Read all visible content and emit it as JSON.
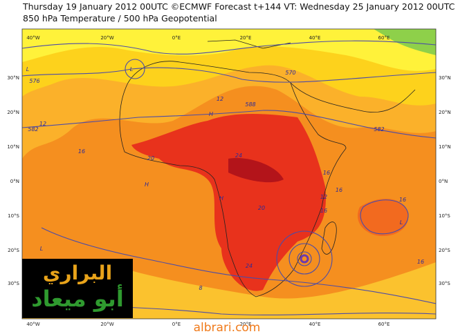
{
  "header": {
    "line1": "Thursday 19 January 2012 00UTC ©ECMWF Forecast t+144 VT: Wednesday 25 January 2012 00UTC",
    "line2": "850 hPa Temperature / 500 hPa Geopotential"
  },
  "map": {
    "lon_labels": [
      "40°W",
      "20°W",
      "0°E",
      "20°E",
      "40°E",
      "60°E"
    ],
    "lat_labels": [
      "30°N",
      "20°N",
      "10°N",
      "0°N",
      "10°S",
      "20°S",
      "30°S"
    ],
    "contour_labels": [
      "L",
      "576",
      "L",
      "582",
      "12",
      "16",
      "12",
      "588",
      "H",
      "16",
      "20",
      "24",
      "H",
      "16",
      "20",
      "12",
      "16",
      "H",
      "L",
      "16",
      "582",
      "L",
      "24",
      "8",
      "570",
      "16"
    ]
  },
  "logo": {
    "line1": "البراري",
    "line2": "أبو ميعاد"
  },
  "footer": {
    "site": "albrari.com"
  }
}
